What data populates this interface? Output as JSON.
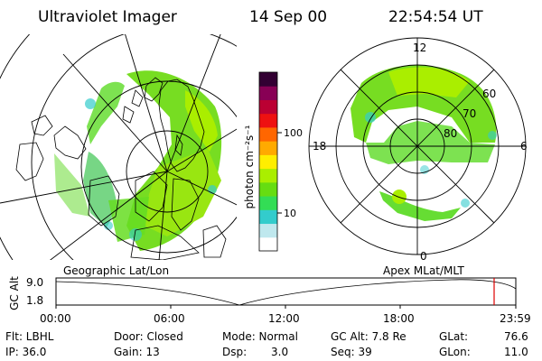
{
  "header": {
    "instrument": "Ultraviolet Imager",
    "date": "14 Sep 00",
    "time": "22:54:54 UT"
  },
  "geographic_panel": {
    "label": "Geographic Lat/Lon"
  },
  "apex_panel": {
    "label": "Apex  MLat/MLT",
    "mlt_labels": {
      "top": "12",
      "right": "6",
      "bottom": "0",
      "left": "18"
    },
    "lat_labels": [
      "60",
      "70",
      "80"
    ]
  },
  "colorbar": {
    "unit_label": "photon cm⁻²s⁻¹",
    "tick_labels": [
      "100",
      "10"
    ],
    "colors": [
      "#ffffff",
      "#bfe8ee",
      "#33cccc",
      "#33dd55",
      "#66dd11",
      "#aaee00",
      "#ffee00",
      "#ffaa00",
      "#ff6600",
      "#ee1111",
      "#bb0033",
      "#880055",
      "#330033"
    ]
  },
  "timeline": {
    "ylabel": "GC Alt",
    "y_ticks": [
      "9.0",
      "1.8"
    ],
    "x_ticks": [
      "00:00",
      "06:00",
      "12:00",
      "18:00",
      "23:59"
    ],
    "marker_color": "#dd0000"
  },
  "info": {
    "row1": {
      "flt": "Flt: LBHL",
      "door": "Door: Closed",
      "mode": "Mode: Normal",
      "gcalt": "GC Alt: 7.8 Re",
      "glat_label": "GLat:",
      "glat_value": "76.6"
    },
    "row2": {
      "ip": "IP: 36.0",
      "gain": "Gain: 13",
      "dsp_label": "Dsp:",
      "dsp_value": "3.0",
      "seq": "Seq: 39",
      "glon_label": "GLon:",
      "glon_value": "11.0"
    }
  }
}
